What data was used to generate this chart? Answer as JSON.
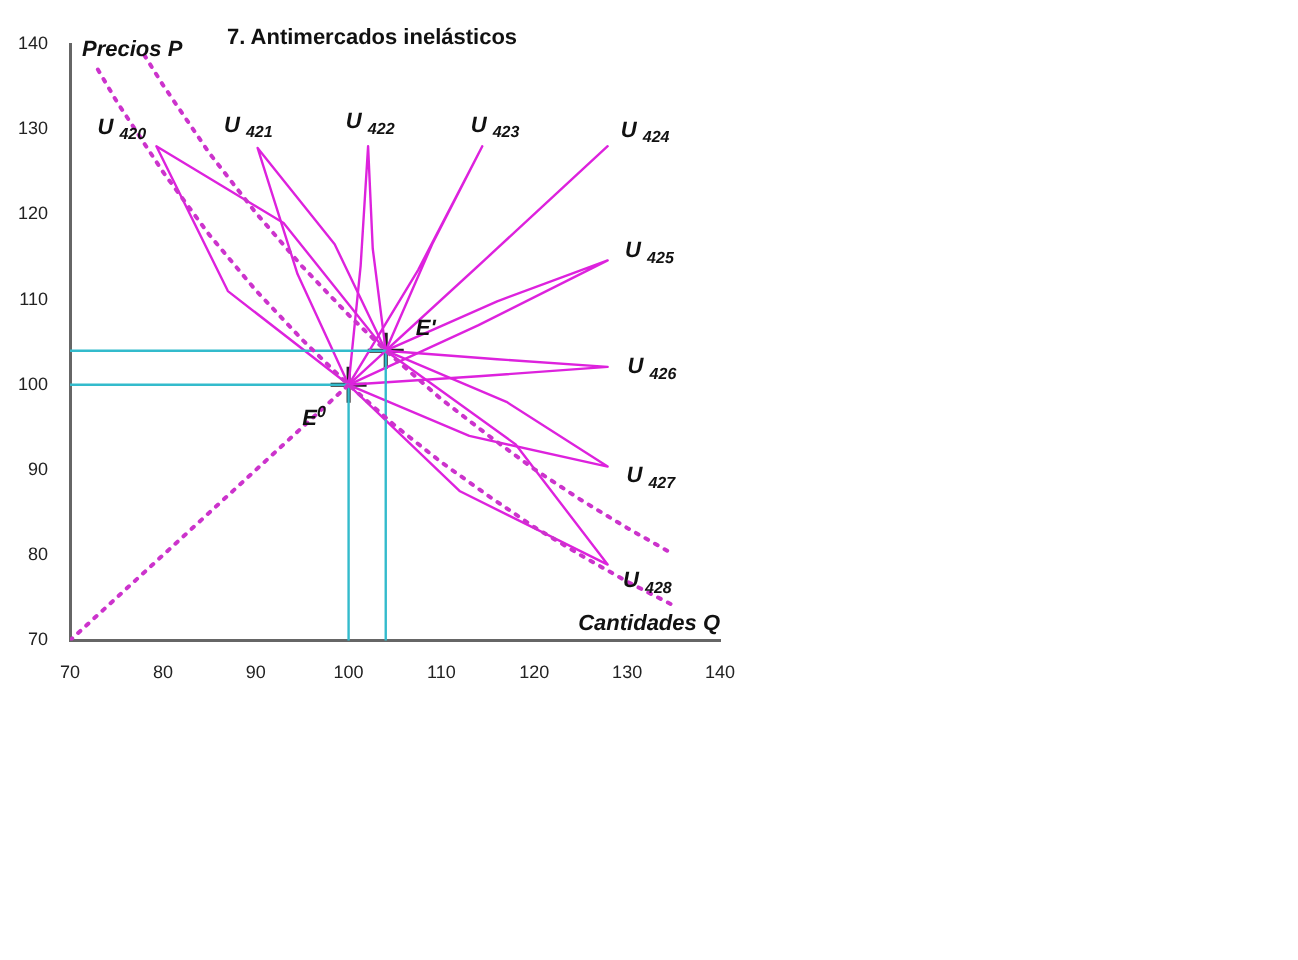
{
  "chart_data": {
    "type": "line",
    "title": "7. Antimercados inelásticos",
    "xlabel": "Cantidades Q",
    "ylabel": "Precios P",
    "xlim": [
      70,
      140
    ],
    "ylim": [
      70,
      140
    ],
    "xticks": [
      70,
      80,
      90,
      100,
      110,
      120,
      130,
      140
    ],
    "yticks": [
      70,
      80,
      90,
      100,
      110,
      120,
      130,
      140
    ],
    "grid": false,
    "legend": false,
    "series": [
      {
        "type": "line",
        "color": "#cc33cc",
        "line_style": "dotted",
        "marker": "none",
        "x": [
          73,
          75,
          80,
          85,
          90,
          95,
          100,
          105,
          110,
          115,
          120,
          125,
          130,
          135
        ],
        "values": [
          137,
          133.3,
          125,
          117.6,
          111.1,
          105.3,
          100,
          95.2,
          90.9,
          87,
          83.3,
          80,
          76.9,
          74.1
        ]
      },
      {
        "type": "line",
        "color": "#cc33cc",
        "line_style": "dotted",
        "marker": "none",
        "x": [
          78,
          80,
          85,
          90,
          95,
          100,
          104,
          110,
          115,
          120,
          125,
          130,
          135
        ],
        "values": [
          138.7,
          135.2,
          127.2,
          120.2,
          113.9,
          108.2,
          104,
          98.3,
          94.1,
          90.1,
          86.5,
          83.2,
          80.1
        ]
      },
      {
        "type": "line",
        "color": "#cc33cc",
        "line_style": "dotted",
        "marker": "none",
        "x": [
          70,
          100
        ],
        "values": [
          70,
          100
        ]
      },
      {
        "type": "line",
        "color": "#33bbcc",
        "line_style": "solid",
        "marker": "none",
        "x": [
          70,
          100,
          100
        ],
        "values": [
          100,
          100,
          70
        ]
      },
      {
        "type": "line",
        "color": "#33bbcc",
        "line_style": "solid",
        "marker": "none",
        "x": [
          70,
          104,
          104
        ],
        "values": [
          104,
          104,
          70
        ]
      },
      {
        "name": "U $_{420}$",
        "type": "line",
        "color": "#dd22dd",
        "line_style": "solid",
        "marker": "none",
        "x": [
          100,
          87,
          79.3,
          93,
          104
        ],
        "values": [
          100,
          111,
          128,
          119,
          104
        ]
      },
      {
        "name": "U $_{421}$",
        "type": "line",
        "color": "#dd22dd",
        "line_style": "solid",
        "marker": "none",
        "x": [
          100,
          94.5,
          90.2,
          98.5,
          104
        ],
        "values": [
          100,
          113,
          127.8,
          116.5,
          104
        ]
      },
      {
        "name": "U $_{422}$",
        "type": "line",
        "color": "#dd22dd",
        "line_style": "solid",
        "marker": "none",
        "x": [
          100,
          101.3,
          102.1,
          102.6,
          104
        ],
        "values": [
          100,
          114,
          128,
          116,
          104
        ]
      },
      {
        "name": "U $_{423}$",
        "type": "line",
        "color": "#dd22dd",
        "line_style": "solid",
        "marker": "none",
        "x": [
          100,
          107.5,
          114.4,
          109,
          104
        ],
        "values": [
          100,
          113.5,
          128,
          116.5,
          104
        ]
      },
      {
        "name": "U $_{424}$",
        "type": "line",
        "color": "#dd22dd",
        "line_style": "solid",
        "marker": "none",
        "x": [
          100,
          114,
          127.9,
          116,
          104
        ],
        "values": [
          100,
          114,
          128,
          116,
          104
        ]
      },
      {
        "name": "U $_{425}$",
        "type": "line",
        "color": "#dd22dd",
        "line_style": "solid",
        "marker": "none",
        "x": [
          100,
          114,
          127.9,
          116,
          104
        ],
        "values": [
          100,
          107,
          114.6,
          109.8,
          104
        ]
      },
      {
        "name": "U $_{426}$",
        "type": "line",
        "color": "#dd22dd",
        "line_style": "solid",
        "marker": "none",
        "x": [
          100,
          114,
          127.9,
          116,
          104
        ],
        "values": [
          100,
          101,
          102.1,
          103,
          104
        ]
      },
      {
        "name": "U $_{427}$",
        "type": "line",
        "color": "#dd22dd",
        "line_style": "solid",
        "marker": "none",
        "x": [
          100,
          113,
          127.9,
          117,
          104
        ],
        "values": [
          100,
          94,
          90.4,
          98,
          104
        ]
      },
      {
        "name": "U $_{428}$",
        "type": "line",
        "color": "#dd22dd",
        "line_style": "solid",
        "marker": "none",
        "x": [
          100,
          112,
          127.9,
          118,
          104
        ],
        "values": [
          100,
          87.5,
          78.9,
          93,
          104
        ]
      },
      {
        "type": "scatter",
        "color": "#222222",
        "marker": "cross",
        "x": [
          100,
          104
        ],
        "values": [
          100,
          104
        ]
      }
    ],
    "annotations": [
      {
        "text": "E$^{0}$",
        "x": 100,
        "y": 100
      },
      {
        "text": "E'",
        "x": 104,
        "y": 104
      }
    ]
  }
}
